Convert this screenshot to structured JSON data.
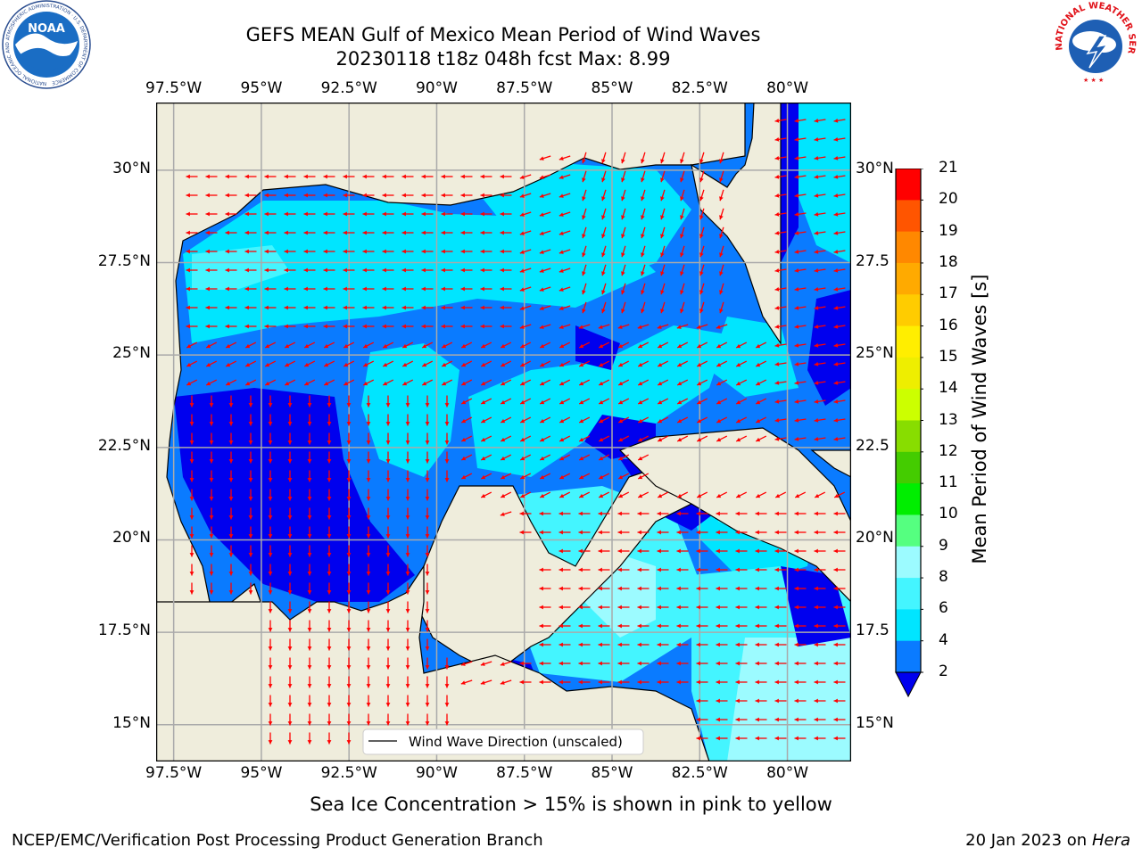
{
  "title": {
    "line1": "GEFS MEAN Gulf of Mexico Mean Period of Wind Waves",
    "line2": "20230118 t18z 048h fcst   Max: 8.99"
  },
  "map": {
    "lon_labels": [
      "97.5°W",
      "95°W",
      "92.5°W",
      "90°W",
      "87.5°W",
      "85°W",
      "82.5°W",
      "80°W"
    ],
    "lat_labels_left": [
      "30°N",
      "27.5°N",
      "25°N",
      "22.5°N",
      "20°N",
      "17.5°N",
      "15°N"
    ],
    "lat_labels_right": [
      "30°N",
      "27.5",
      "25°N",
      "22.5",
      "20°N",
      "17.5",
      "15°N"
    ],
    "legend_label": "Wind Wave Direction (unscaled)",
    "colors": {
      "land": "#efeddc",
      "level_2_4": "#0a7bff",
      "level_4_6": "#00e5ff",
      "level_6_8": "#44f5ff",
      "level_8_9": "#9cfbff",
      "below_2": "#0000ee",
      "arrow": "#ff0000"
    }
  },
  "colorbar": {
    "label": "Mean Period of Wind Waves [s]",
    "ticks": [
      "2",
      "4",
      "6",
      "8",
      "9",
      "10",
      "11",
      "12",
      "13",
      "14",
      "15",
      "16",
      "17",
      "18",
      "19",
      "20",
      "21"
    ],
    "colors": [
      "#0a7bff",
      "#00e5ff",
      "#44f5ff",
      "#9cfbff",
      "#55ff80",
      "#22dd22",
      "#00ee00",
      "#44cc00",
      "#88dd00",
      "#ccff00",
      "#eeee00",
      "#ffee00",
      "#ffcc00",
      "#ffaa00",
      "#ff8800",
      "#ff5500",
      "#ff2200",
      "#ff0000"
    ],
    "under_color": "#0000ee"
  },
  "note": "Sea Ice Concentration > 15% is shown in pink to yellow",
  "footer": {
    "left": "NCEP/EMC/Verification Post Processing Product Generation Branch",
    "right_date": "20 Jan 2023 on ",
    "right_host": "Hera"
  },
  "logos": {
    "noaa_text": "NOAA",
    "noaa_ring": "NATIONAL OCEANIC AND ATMOSPHERIC ADMINISTRATION · U.S. DEPARTMENT OF COMMERCE",
    "nws_ring": "NATIONAL WEATHER SERVICE"
  }
}
